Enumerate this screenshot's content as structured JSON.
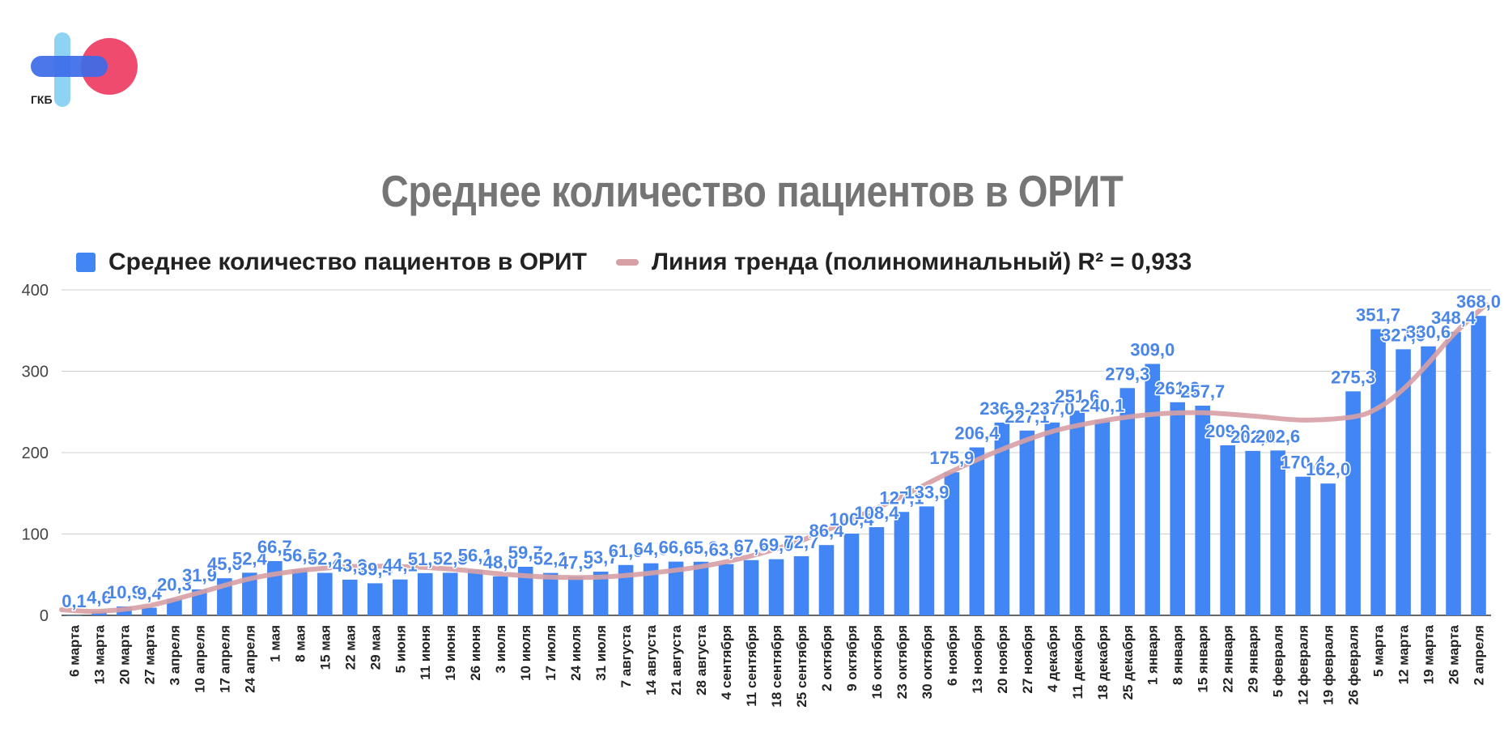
{
  "logo": {
    "text": "ГКБ",
    "colors": {
      "blue": "#3d6be8",
      "cyan": "#8fd3f4",
      "pink": "#ef4b6f"
    }
  },
  "chart_data": {
    "type": "bar",
    "title": "Среднее количество пациентов в ОРИТ",
    "ylim": [
      0,
      400
    ],
    "yticks": [
      0,
      100,
      200,
      300,
      400
    ],
    "grid": true,
    "legend_position": "top-left",
    "bar_color": "#4285f4",
    "trend_color": "#d7a0a4",
    "label_color": "#4a86e8",
    "categories": [
      "6 марта",
      "13 марта",
      "20 марта",
      "27 марта",
      "3 апреля",
      "10 апреля",
      "17 апреля",
      "24 апреля",
      "1 мая",
      "8 мая",
      "15 мая",
      "22 мая",
      "29 мая",
      "5 июня",
      "11 июня",
      "19 июня",
      "26 июня",
      "3 июля",
      "10 июля",
      "17 июля",
      "24 июля",
      "31 июля",
      "7 августа",
      "14 августа",
      "21 августа",
      "28 августа",
      "4 сентября",
      "11 сентября",
      "18 сентября",
      "25 сентября",
      "2 октября",
      "9 октября",
      "16 октября",
      "23 октября",
      "30 октября",
      "6 ноября",
      "13 ноября",
      "20 ноября",
      "27 ноября",
      "4 декабря",
      "11 декабря",
      "18 декабря",
      "25 декабря",
      "1 января",
      "8 января",
      "15 января",
      "22 января",
      "29 января",
      "5 февраля",
      "12 февраля",
      "19 февраля",
      "26 февраля",
      "5 марта",
      "12 марта",
      "19 марта",
      "26 марта",
      "2 апреля"
    ],
    "series": [
      {
        "name": "Среднее количество пациентов в ОРИТ",
        "values": [
          0.1,
          4.6,
          10.9,
          9.4,
          20.3,
          31.9,
          45.6,
          52.4,
          66.7,
          56.3,
          52.2,
          43.9,
          39.4,
          44.1,
          51.9,
          52.3,
          56.1,
          48.0,
          59.7,
          52.1,
          47.5,
          53.7,
          61.9,
          64.0,
          66.0,
          65.9,
          63.0,
          67.9,
          69.0,
          72.7,
          86.4,
          100.4,
          108.4,
          127.1,
          133.9,
          175.9,
          206.4,
          236.9,
          227.1,
          237.0,
          251.6,
          240.1,
          279.3,
          309.0,
          261.9,
          257.7,
          209.0,
          202.1,
          202.6,
          170.4,
          162.0,
          275.3,
          351.7,
          327.0,
          330.6,
          348.4,
          368.0
        ],
        "labels": [
          "0,1",
          "4,6",
          "10,9",
          "9,4",
          "20,3",
          "31,9",
          "45,6",
          "52,4",
          "66,7",
          "56,3",
          "52,2",
          "43,9",
          "39,4",
          "44,1",
          "51,9",
          "52,3",
          "56,1",
          "48,0",
          "59,7",
          "52,1",
          "47,5",
          "53,7",
          "61,9",
          "64,0",
          "66,0",
          "65,9",
          "63,0",
          "67,9",
          "69,0",
          "72,7",
          "86,4",
          "100,4",
          "108,4",
          "127,1",
          "133,9",
          "175,9",
          "206,4",
          "236,9",
          "227,1",
          "237,0",
          "251,6",
          "240,1",
          "279,3",
          "309,0",
          "261,9",
          "257,7",
          "209,0",
          "202,1",
          "202,6",
          "170,4",
          "162,0",
          "275,3",
          "351,7",
          "327,0",
          "330,6",
          "348,4",
          "368,0"
        ]
      }
    ],
    "trendline": {
      "name": "Линия тренда (полиноминальный) R² = 0,933",
      "x_index": [
        -0.5,
        1,
        3,
        5,
        7,
        9,
        11,
        13,
        15,
        17,
        19,
        21,
        23,
        25,
        27,
        29,
        31,
        33,
        35,
        37,
        39,
        41,
        43,
        45,
        47,
        49,
        51,
        52,
        53,
        54,
        55,
        56.3
      ],
      "values": [
        7,
        5,
        12,
        28,
        45,
        55,
        60,
        60,
        57,
        51,
        47,
        47,
        52,
        60,
        73,
        92,
        118,
        146,
        177,
        204,
        226,
        239,
        247,
        249,
        245,
        240,
        244,
        255,
        278,
        310,
        345,
        382
      ]
    }
  }
}
